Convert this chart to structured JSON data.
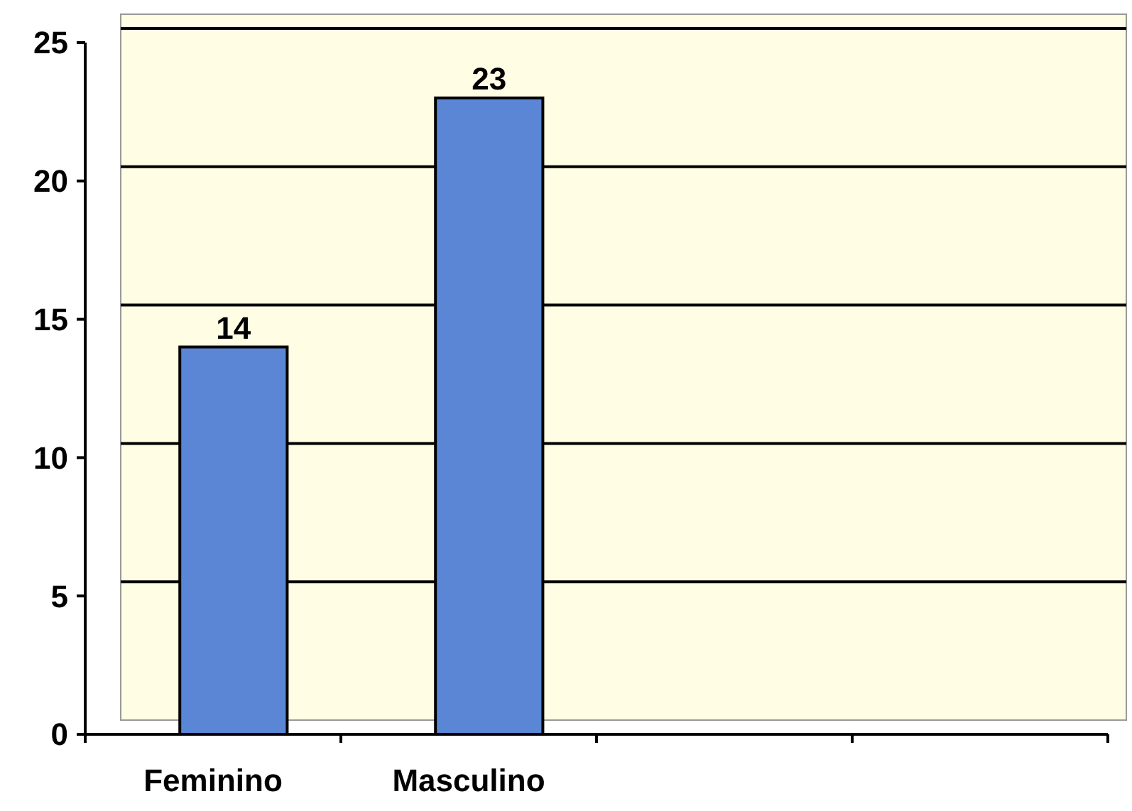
{
  "chart_data": {
    "type": "bar",
    "categories": [
      "Feminino",
      "Masculino",
      null,
      null
    ],
    "values": [
      14,
      23,
      null,
      null
    ],
    "color": "#5b86d6",
    "ylim": [
      0,
      25
    ],
    "yticks": [
      0,
      5,
      10,
      15,
      20,
      25
    ],
    "grid": "y",
    "data_labels": true
  }
}
